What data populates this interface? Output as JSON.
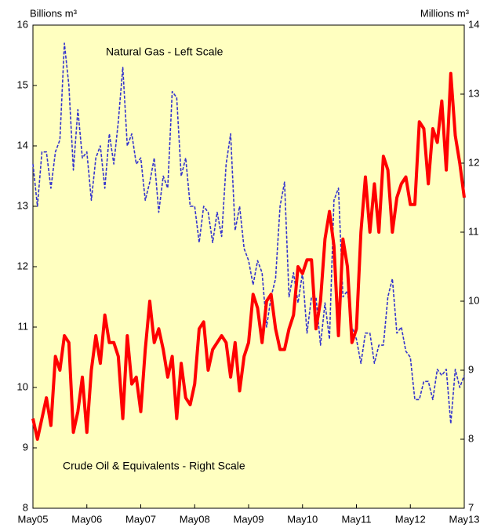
{
  "chart_data": {
    "type": "line",
    "ylabel": "Billions m³",
    "y2label": "Millions m³",
    "categories": [
      "May05",
      null,
      null,
      null,
      null,
      null,
      null,
      null,
      null,
      null,
      null,
      null,
      "May06",
      null,
      null,
      null,
      null,
      null,
      null,
      null,
      null,
      null,
      null,
      null,
      "May07",
      null,
      null,
      null,
      null,
      null,
      null,
      null,
      null,
      null,
      null,
      null,
      "May08",
      null,
      null,
      null,
      null,
      null,
      null,
      null,
      null,
      null,
      null,
      null,
      "May09",
      null,
      null,
      null,
      null,
      null,
      null,
      null,
      null,
      null,
      null,
      null,
      "May10",
      null,
      null,
      null,
      null,
      null,
      null,
      null,
      null,
      null,
      null,
      null,
      "May11",
      null,
      null,
      null,
      null,
      null,
      null,
      null,
      null,
      null,
      null,
      null,
      "May12",
      null,
      null,
      null,
      null,
      null,
      null,
      null,
      null,
      null,
      null,
      null,
      "May13"
    ],
    "series": [
      {
        "name": "Natural Gas - Left Scale",
        "color": "#3333cc",
        "axis": "y",
        "dashed": true,
        "values": [
          13.7,
          13.0,
          13.9,
          13.9,
          13.3,
          13.9,
          14.1,
          15.7,
          15.0,
          13.6,
          14.6,
          13.8,
          13.9,
          13.1,
          13.8,
          14.0,
          13.3,
          14.2,
          13.7,
          14.4,
          15.3,
          14.0,
          14.2,
          13.7,
          13.8,
          13.1,
          13.4,
          13.8,
          12.9,
          13.5,
          13.3,
          14.9,
          14.8,
          13.5,
          13.8,
          13.0,
          13.0,
          12.4,
          13.0,
          12.9,
          12.4,
          12.9,
          12.5,
          13.7,
          14.2,
          12.6,
          13.0,
          12.3,
          12.1,
          11.7,
          12.1,
          11.9,
          11.0,
          11.5,
          11.8,
          13.0,
          13.4,
          11.5,
          11.9,
          11.4,
          11.9,
          10.9,
          11.5,
          11.5,
          10.7,
          11.4,
          10.8,
          13.1,
          13.3,
          11.5,
          11.6,
          11.0,
          10.8,
          10.4,
          10.9,
          10.9,
          10.4,
          10.7,
          10.7,
          11.5,
          11.8,
          10.9,
          11.0,
          10.6,
          10.5,
          9.8,
          9.8,
          10.1,
          10.1,
          9.8,
          10.3,
          10.2,
          10.3,
          9.4,
          10.3,
          10.0,
          10.2
        ]
      },
      {
        "name": "Crude Oil & Equivalents - Right Scale",
        "color": "#ff0000",
        "axis": "y2",
        "dashed": false,
        "values": [
          8.3,
          8.0,
          8.3,
          8.6,
          8.2,
          9.2,
          9.0,
          9.5,
          9.4,
          8.1,
          8.4,
          8.9,
          8.1,
          9.0,
          9.5,
          9.1,
          9.8,
          9.4,
          9.4,
          9.2,
          8.3,
          9.5,
          8.8,
          8.9,
          8.4,
          9.3,
          10.0,
          9.4,
          9.6,
          9.3,
          8.9,
          9.2,
          8.3,
          9.1,
          8.6,
          8.5,
          8.8,
          9.6,
          9.7,
          9.0,
          9.3,
          9.4,
          9.5,
          9.4,
          8.9,
          9.4,
          8.7,
          9.2,
          9.4,
          10.1,
          9.9,
          9.4,
          10.0,
          10.1,
          9.6,
          9.3,
          9.3,
          9.6,
          9.8,
          10.5,
          10.4,
          10.6,
          10.6,
          9.6,
          10.0,
          10.9,
          11.3,
          10.8,
          9.5,
          10.9,
          10.5,
          9.4,
          9.6,
          11.0,
          11.8,
          11.0,
          11.7,
          11.0,
          12.1,
          11.9,
          11.0,
          11.5,
          11.7,
          11.8,
          11.4,
          11.4,
          12.6,
          12.5,
          11.7,
          12.5,
          12.3,
          12.9,
          11.9,
          13.3,
          12.4,
          12.0,
          11.5
        ]
      }
    ],
    "ylim": [
      8,
      16
    ],
    "yticks": [
      8,
      9,
      10,
      11,
      12,
      13,
      14,
      15,
      16
    ],
    "y2lim": [
      7,
      14
    ],
    "y2ticks": [
      7,
      8,
      9,
      10,
      11,
      12,
      13,
      14
    ],
    "background": "#ffffc0"
  }
}
